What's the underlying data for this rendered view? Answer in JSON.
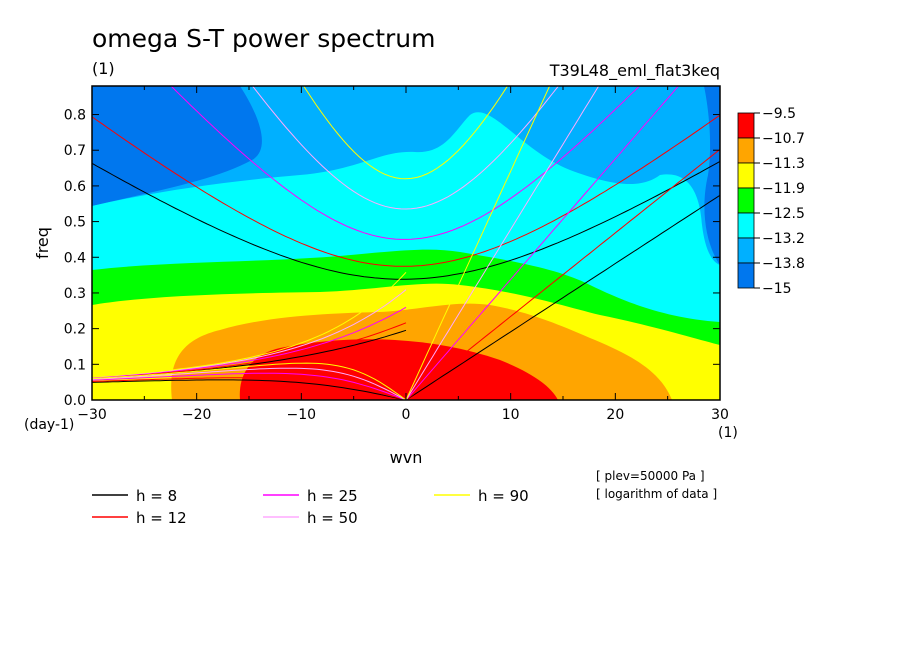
{
  "chart_data": {
    "type": "heatmap",
    "title": "omega S-T power spectrum",
    "subtitle_left": "(1)",
    "subtitle_right": "T39L48_eml_flat3keq",
    "xlabel": "wvn",
    "ylabel": "freq",
    "x_units": "(1)",
    "y_units": "(day-1)",
    "xlim": [
      -30,
      30
    ],
    "ylim": [
      0,
      0.88
    ],
    "xticks": [
      -30,
      -20,
      -10,
      0,
      10,
      20,
      30
    ],
    "yticks": [
      0.0,
      0.1,
      0.2,
      0.3,
      0.4,
      0.5,
      0.6,
      0.7,
      0.8
    ],
    "ytick_labels": [
      "0.0",
      "0.1",
      "0.2",
      "0.3",
      "0.4",
      "0.5",
      "0.6",
      "0.7",
      "0.8"
    ],
    "colorbar": {
      "levels": [
        "-9.5",
        "-10.7",
        "-11.3",
        "-11.9",
        "-12.5",
        "-13.2",
        "-13.8",
        "-15"
      ],
      "colors": [
        "#ff0000",
        "#ffa500",
        "#ffff00",
        "#00ff00",
        "#00ffff",
        "#00b0ff",
        "#0077ee"
      ]
    },
    "dispersion_curves": [
      {
        "name": "h = 8",
        "h": 8,
        "color": "#000000"
      },
      {
        "name": "h = 12",
        "h": 12,
        "color": "#ff0000"
      },
      {
        "name": "h = 25",
        "h": 25,
        "color": "#ff00ff"
      },
      {
        "name": "h = 50",
        "h": 50,
        "color": "#ffaaff"
      },
      {
        "name": "h = 90",
        "h": 90,
        "color": "#ffff00"
      }
    ],
    "legend": [
      {
        "label": "h =  8",
        "color": "#000000"
      },
      {
        "label": "h = 12",
        "color": "#ff0000"
      },
      {
        "label": "h = 25",
        "color": "#ff00ff"
      },
      {
        "label": "h = 50",
        "color": "#ffaaff"
      },
      {
        "label": "h = 90",
        "color": "#ffff00"
      }
    ],
    "notes": [
      "[ plev=50000 Pa ]",
      "[ logarithm of data ]"
    ]
  }
}
